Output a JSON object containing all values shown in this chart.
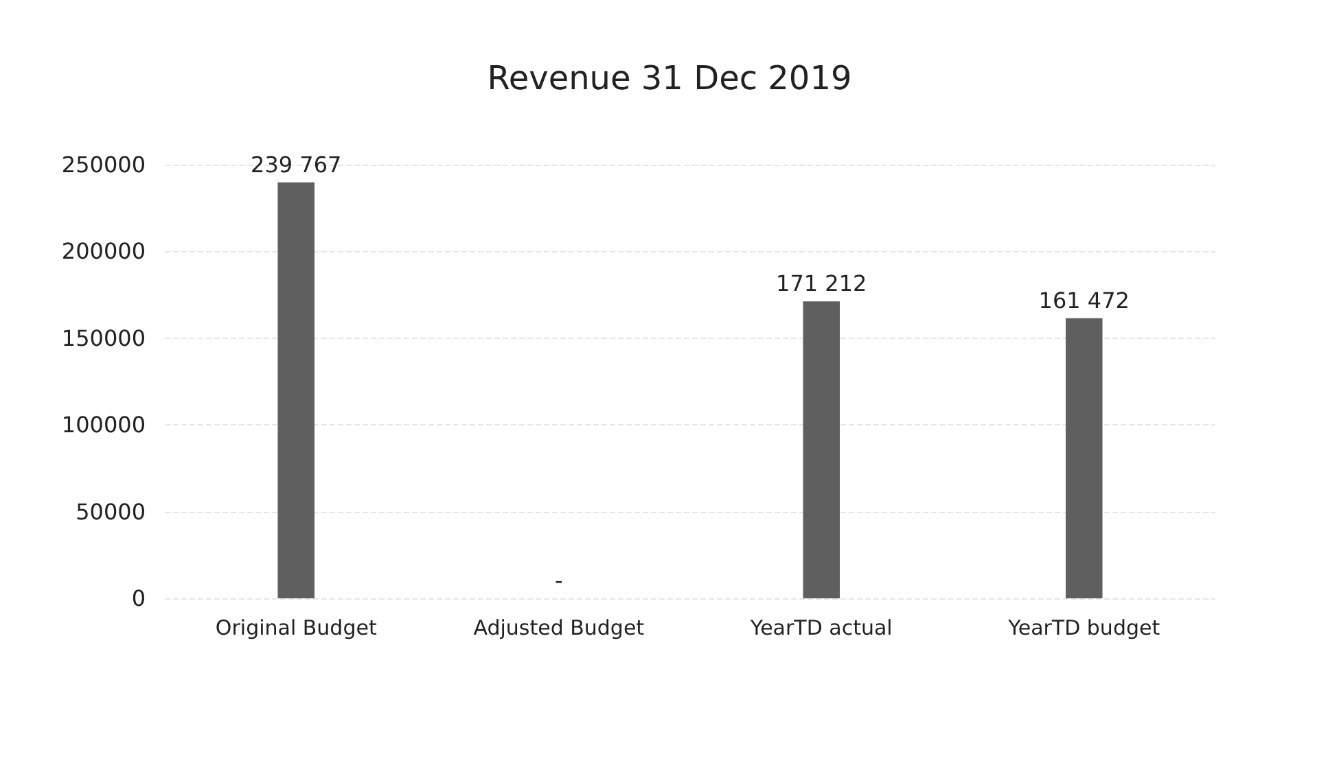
{
  "chart_data": {
    "type": "bar",
    "title": "Revenue 31 Dec 2019",
    "categories": [
      "Original Budget",
      "Adjusted Budget",
      "YearTD actual",
      "YearTD budget"
    ],
    "values": [
      239767,
      0,
      171212,
      161472
    ],
    "value_labels": [
      "239 767",
      "-",
      "171 212",
      "161 472"
    ],
    "color": "#5f5f5f",
    "ylim": [
      0,
      250000
    ],
    "yticks": [
      0,
      50000,
      100000,
      150000,
      200000,
      250000
    ],
    "grid": "y"
  }
}
